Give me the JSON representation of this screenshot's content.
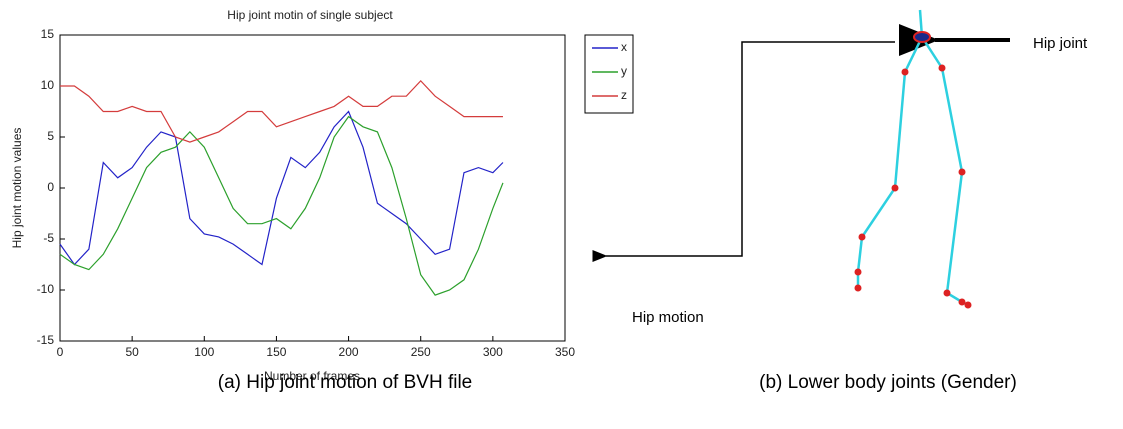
{
  "chart_data": {
    "type": "line",
    "title": "Hip joint motin of single subject",
    "x_label": "Number of frames",
    "y_label": "Hip joint motion values",
    "x": [
      0,
      10,
      20,
      30,
      40,
      50,
      60,
      70,
      80,
      90,
      100,
      110,
      120,
      130,
      140,
      150,
      160,
      170,
      180,
      190,
      200,
      210,
      220,
      230,
      240,
      250,
      260,
      270,
      280,
      290,
      300,
      307
    ],
    "series": [
      {
        "name": "x",
        "color": "#2323c8",
        "values": [
          -5.5,
          -7.5,
          -6,
          2.5,
          1,
          2,
          4,
          5.5,
          5,
          -3,
          -4.5,
          -4.8,
          -5.5,
          -6.5,
          -7.5,
          -1,
          3,
          2,
          3.5,
          6,
          7.5,
          4,
          -1.5,
          -2.5,
          -3.5,
          -5,
          -6.5,
          -6,
          1.5,
          2,
          1.5,
          2.5
        ]
      },
      {
        "name": "y",
        "color": "#2ca02c",
        "values": [
          -6.5,
          -7.5,
          -8,
          -6.5,
          -4,
          -1,
          2,
          3.5,
          4,
          5.5,
          4,
          1,
          -2,
          -3.5,
          -3.5,
          -3,
          -4,
          -2,
          1,
          5,
          7,
          6,
          5.5,
          2,
          -3,
          -8.5,
          -10.5,
          -10,
          -9,
          -6,
          -2,
          0.5
        ]
      },
      {
        "name": "z",
        "color": "#d43c3c",
        "values": [
          10,
          10,
          9,
          7.5,
          7.5,
          8,
          7.5,
          7.5,
          5,
          4.5,
          5,
          5.5,
          6.5,
          7.5,
          7.5,
          6,
          6.5,
          7,
          7.5,
          8,
          9,
          8,
          8,
          9,
          9,
          10.5,
          9,
          8,
          7,
          7,
          7,
          7
        ]
      }
    ],
    "xlim": [
      0,
      350
    ],
    "xticks": [
      0,
      50,
      100,
      150,
      200,
      250,
      300,
      350
    ],
    "ylim": [
      -15,
      15
    ],
    "yticks": [
      -15,
      -10,
      -5,
      0,
      5,
      10,
      15
    ],
    "legend": "outside-right"
  },
  "figure": {
    "captions": [
      "(a) Hip joint motion of BVH file",
      "(b) Lower body joints (Gender)"
    ],
    "annotations": [
      "Hip joint",
      "Hip motion"
    ]
  }
}
